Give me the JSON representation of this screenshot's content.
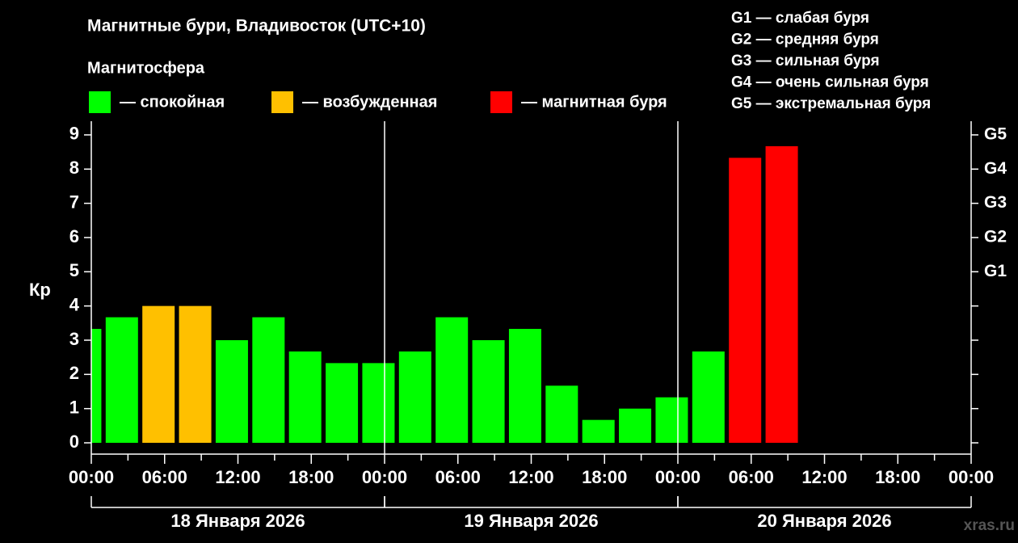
{
  "chart_data": {
    "type": "bar",
    "title": "Магнитные бури, Владивосток (UTC+10)",
    "subtitle": "Магнитосфера",
    "y_label": "Кр",
    "legend": [
      {
        "label": "— спокойная",
        "color": "#00ff00"
      },
      {
        "label": "— возбужденная",
        "color": "#ffc000"
      },
      {
        "label": "— магнитная буря",
        "color": "#ff0000"
      }
    ],
    "storm_scale": [
      "G1 — слабая буря",
      "G2 — средняя буря",
      "G3 — сильная буря",
      "G4 — очень сильная буря",
      "G5 — экстремальная буря"
    ],
    "x": [
      -0.5,
      2.5,
      5.5,
      8.5,
      11.5,
      14.5,
      17.5,
      20.5,
      23.5,
      26.5,
      29.5,
      32.5,
      35.5,
      38.5,
      41.5,
      44.5,
      47.5,
      50.5,
      53.5,
      56.5
    ],
    "values": [
      3.33,
      3.67,
      4,
      4,
      3,
      3.67,
      2.67,
      2.33,
      2.33,
      2.67,
      3.67,
      3,
      3.33,
      1.67,
      0.67,
      1,
      1.33,
      2.67,
      8.33,
      8.67
    ],
    "colors": [
      "#00ff00",
      "#00ff00",
      "#ffc000",
      "#ffc000",
      "#00ff00",
      "#00ff00",
      "#00ff00",
      "#00ff00",
      "#00ff00",
      "#00ff00",
      "#00ff00",
      "#00ff00",
      "#00ff00",
      "#00ff00",
      "#00ff00",
      "#00ff00",
      "#00ff00",
      "#00ff00",
      "#ff0000",
      "#ff0000"
    ],
    "xlim": [
      0,
      72
    ],
    "xticks": [
      {
        "value": 0,
        "label": "00:00"
      },
      {
        "value": 6,
        "label": "06:00"
      },
      {
        "value": 12,
        "label": "12:00"
      },
      {
        "value": 18,
        "label": "18:00"
      },
      {
        "value": 24,
        "label": "00:00"
      },
      {
        "value": 30,
        "label": "06:00"
      },
      {
        "value": 36,
        "label": "12:00"
      },
      {
        "value": 42,
        "label": "18:00"
      },
      {
        "value": 48,
        "label": "00:00"
      },
      {
        "value": 54,
        "label": "06:00"
      },
      {
        "value": 60,
        "label": "12:00"
      },
      {
        "value": 66,
        "label": "18:00"
      },
      {
        "value": 72,
        "label": "00:00"
      }
    ],
    "days": [
      "18 Января 2026",
      "19 Января 2026",
      "20 Января 2026"
    ],
    "ylim": [
      -0.33,
      9.4
    ],
    "yticks": [
      0,
      1,
      2,
      3,
      4,
      5,
      6,
      7,
      8,
      9
    ],
    "y2lim": [
      -0.33,
      9.4
    ],
    "y2ticks": [
      {
        "value": 5,
        "label": "G1"
      },
      {
        "value": 6,
        "label": "G2"
      },
      {
        "value": 7,
        "label": "G3"
      },
      {
        "value": 8,
        "label": "G4"
      },
      {
        "value": 9,
        "label": "G5"
      }
    ],
    "watermark": "xras.ru"
  }
}
